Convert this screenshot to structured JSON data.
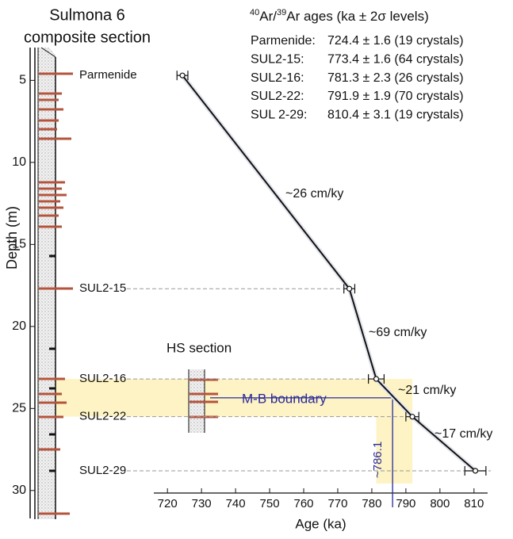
{
  "chart_data": {
    "type": "scatter",
    "title_lines": [
      "Sulmona 6",
      "composite section"
    ],
    "age_header": {
      "sup1": "40",
      "t1": "Ar/",
      "sup2": "39",
      "t2": "Ar ages (ka ± 2σ levels)"
    },
    "age_table": [
      {
        "label": "Parmenide:",
        "text": "724.4 ± 1.6 (19 crystals)"
      },
      {
        "label": "SUL2-15:",
        "text": "773.4 ± 1.6 (64 crystals)"
      },
      {
        "label": "SUL2-16:",
        "text": "781.3 ± 2.3 (26 crystals)"
      },
      {
        "label": "SUL2-22:",
        "text": "791.9 ± 1.9 (70 crystals)"
      },
      {
        "label": "SUL 2-29:",
        "text": "810.4 ± 3.1 (19 crystals)"
      }
    ],
    "point_labels": [
      "Parmenide",
      "SUL2-15",
      "SUL2-16",
      "SUL2-22",
      "SUL2-29"
    ],
    "x": [
      724.4,
      773.4,
      781.3,
      791.9,
      810.4
    ],
    "xerr": [
      1.6,
      1.6,
      2.3,
      1.9,
      3.1
    ],
    "y": [
      4.7,
      17.7,
      23.2,
      25.5,
      28.8
    ],
    "rates": [
      "~26 cm/ky",
      "~69 cm/ky",
      "~21 cm/ky",
      "~17 cm/ky"
    ],
    "hs_label": "HS section",
    "boundary_label": "M-B boundary",
    "boundary_age": 786.1,
    "boundary_age_label": "~786.1",
    "xlabel": "Age (ka)",
    "ylabel": "Depth (m)",
    "xlim": [
      716,
      814
    ],
    "ylim": [
      3,
      31.7
    ],
    "xticks": [
      720,
      730,
      740,
      750,
      760,
      770,
      780,
      790,
      800,
      810
    ],
    "yticks": [
      5,
      10,
      15,
      20,
      25,
      30
    ],
    "y_inverted": true,
    "line_color": "#111111",
    "band_color": "#fdf3c4",
    "boundary_color": "#2a2a9a",
    "section_color": "#b5543c"
  }
}
